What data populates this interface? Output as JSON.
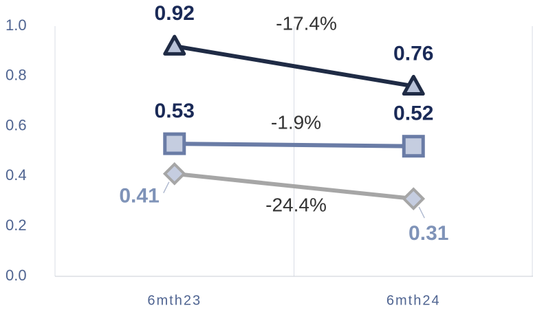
{
  "chart_data": {
    "type": "line",
    "categories": [
      "6mth23",
      "6mth24"
    ],
    "series": [
      {
        "color": "#1f2b45",
        "marker": "triangle",
        "values": [
          0.92,
          0.76
        ]
      },
      {
        "color": "#6a7ca6",
        "marker": "square",
        "values": [
          0.53,
          0.52
        ]
      },
      {
        "color": "#a6a6a6",
        "marker": "diamond",
        "values": [
          0.41,
          0.31
        ]
      }
    ],
    "annotations": [
      "-17.4%",
      "-1.9%",
      "-24.4%"
    ],
    "ylim": [
      0,
      1
    ],
    "yticks": [
      {
        "value": 0,
        "label": "0.0"
      },
      {
        "value": 0.2,
        "label": "0.2"
      },
      {
        "value": 0.4,
        "label": "0.4"
      },
      {
        "value": 0.6,
        "label": "0.6"
      },
      {
        "value": 0.8,
        "label": "0.8"
      },
      {
        "value": 1,
        "label": "1.0"
      }
    ],
    "grid": true
  }
}
